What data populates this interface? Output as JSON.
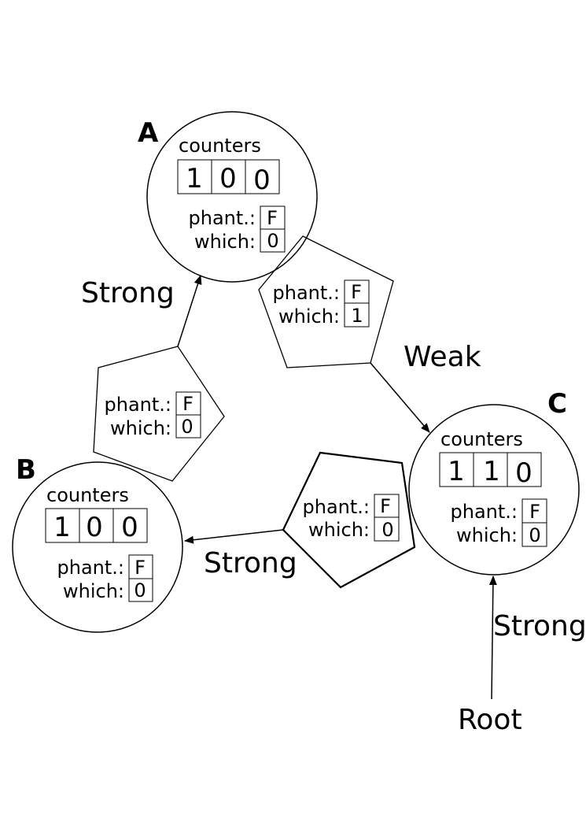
{
  "nodes": {
    "A": {
      "name": "A",
      "counters_label": "counters",
      "counters": [
        "1",
        "0",
        "0"
      ],
      "phant_label": "phant.:",
      "phant_value": "F",
      "which_label": "which:",
      "which_value": "0"
    },
    "B": {
      "name": "B",
      "counters_label": "counters",
      "counters": [
        "1",
        "0",
        "0"
      ],
      "phant_label": "phant.:",
      "phant_value": "F",
      "which_label": "which:",
      "which_value": "0"
    },
    "C": {
      "name": "C",
      "counters_label": "counters",
      "counters": [
        "1",
        "1",
        "0"
      ],
      "phant_label": "phant.:",
      "phant_value": "F",
      "which_label": "which:",
      "which_value": "0"
    }
  },
  "pointers": {
    "BA": {
      "phant_label": "phant.:",
      "phant_value": "F",
      "which_label": "which:",
      "which_value": "0"
    },
    "AC": {
      "phant_label": "phant.:",
      "phant_value": "F",
      "which_label": "which:",
      "which_value": "1"
    },
    "CB": {
      "phant_label": "phant.:",
      "phant_value": "F",
      "which_label": "which:",
      "which_value": "0"
    }
  },
  "edges": {
    "BA": "Strong",
    "AC": "Weak",
    "CB": "Strong",
    "root": "Strong"
  },
  "root_label": "Root"
}
